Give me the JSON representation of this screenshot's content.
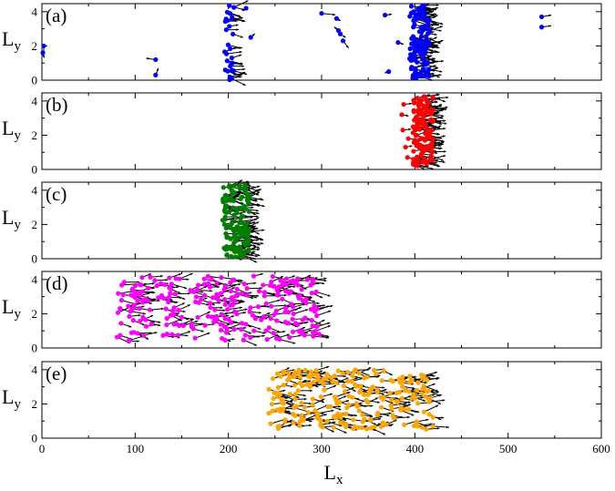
{
  "chart_data": {
    "type": "scatter",
    "xlabel": {
      "main": "L",
      "sub": "x"
    },
    "ylabel": {
      "main": "L",
      "sub": "y"
    },
    "xlim": [
      0,
      600
    ],
    "ylim": [
      0,
      4.47
    ],
    "x_ticks": [
      "0",
      "100",
      "200",
      "300",
      "400",
      "500",
      "600"
    ],
    "y_ticks": [
      "0",
      "2",
      "4"
    ],
    "arrow_color": "#000000",
    "panels": [
      {
        "label": "(a)",
        "color": "#0000ff",
        "clusters": [
          {
            "x": [
              394,
              416
            ],
            "y": [
              0.1,
              4.4
            ],
            "n": 120
          },
          {
            "x": [
              196,
              206
            ],
            "y": [
              0.0,
              4.4
            ],
            "n": 30
          }
        ],
        "points": [
          [
            2,
            2.0,
            0,
            -1.7
          ],
          [
            1,
            1.6,
            2,
            -1.1
          ],
          [
            122,
            1.2,
            -14,
            0.3
          ],
          [
            122,
            0.3,
            4,
            1.5
          ],
          [
            219,
            4.2,
            -5,
            -0.6
          ],
          [
            224,
            2.5,
            6,
            0.8
          ],
          [
            300,
            3.9,
            20,
            -0.3
          ],
          [
            316,
            3.6,
            6,
            -0.5
          ],
          [
            318,
            2.9,
            -6,
            0.8
          ],
          [
            320,
            2.7,
            8,
            -0.8
          ],
          [
            323,
            2.3,
            8,
            -1.6
          ],
          [
            368,
            3.8,
            10,
            0.2
          ],
          [
            372,
            0.5,
            -6,
            -0.3
          ],
          [
            536,
            3.7,
            14,
            0.4
          ],
          [
            536,
            3.1,
            14,
            0.3
          ],
          [
            382,
            2.2,
            8,
            -0.4
          ]
        ]
      },
      {
        "label": "(b)",
        "color": "#ff0000",
        "clusters": [
          {
            "x": [
              398,
              420
            ],
            "y": [
              0.1,
              4.4
            ],
            "n": 130
          }
        ],
        "points": [
          [
            386,
            3.2,
            10,
            -0.3
          ],
          [
            387,
            2.3,
            12,
            0.2
          ],
          [
            390,
            1.3,
            10,
            0.3
          ],
          [
            392,
            0.7,
            10,
            -0.4
          ],
          [
            388,
            3.8,
            12,
            0.2
          ],
          [
            393,
            1.8,
            10,
            -0.2
          ]
        ]
      },
      {
        "label": "(c)",
        "color": "#008000",
        "clusters": [
          {
            "x": [
              193,
              223
            ],
            "y": [
              0.1,
              4.4
            ],
            "n": 150
          }
        ],
        "points": []
      },
      {
        "label": "(d)",
        "color": "#ff00ff",
        "clusters": [
          {
            "x": [
              80,
              300
            ],
            "y": [
              0.4,
              4.2
            ],
            "n": 260
          }
        ],
        "points": []
      },
      {
        "label": "(e)",
        "color": "#ffa500",
        "clusters": [
          {
            "x": [
              243,
              420
            ],
            "y": [
              0.5,
              4.0
            ],
            "n": 240
          }
        ],
        "points": []
      }
    ]
  }
}
